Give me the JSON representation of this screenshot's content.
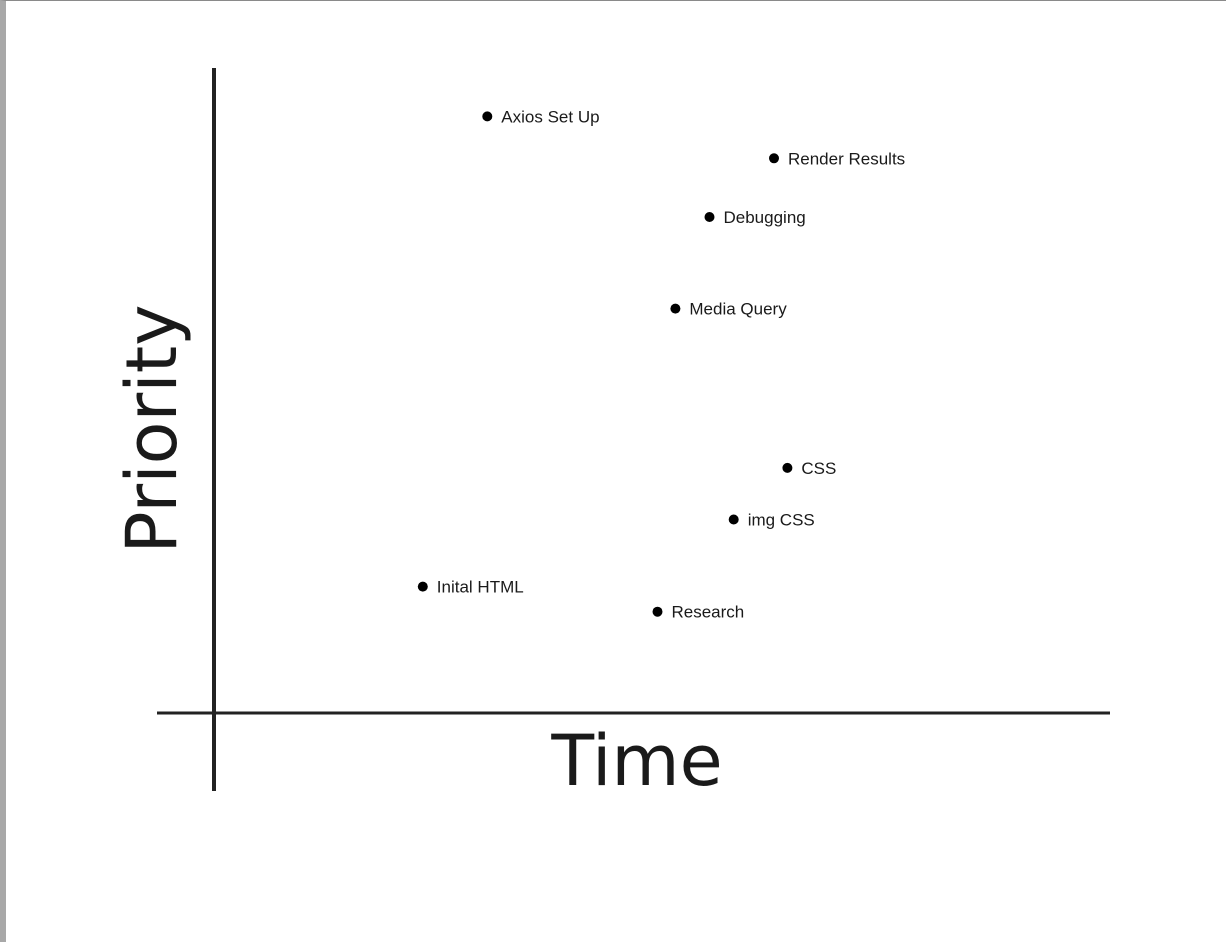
{
  "chart_data": {
    "type": "scatter",
    "title": "",
    "xlabel": "Time",
    "ylabel": "Priority",
    "xlim": [
      0,
      100
    ],
    "ylim": [
      0,
      100
    ],
    "grid": false,
    "legend": "none",
    "colors": {
      "axis": "#222222",
      "point": "#000000",
      "text": "#1a1a1a"
    },
    "points": [
      {
        "label": "Axios Set Up",
        "x": 30.5,
        "y": 92.5
      },
      {
        "label": "Render Results",
        "x": 62.5,
        "y": 86.0
      },
      {
        "label": "Debugging",
        "x": 55.3,
        "y": 76.9
      },
      {
        "label": "Media Query",
        "x": 51.5,
        "y": 62.7
      },
      {
        "label": "CSS",
        "x": 64.0,
        "y": 38.0
      },
      {
        "label": "img CSS",
        "x": 58.0,
        "y": 30.0
      },
      {
        "label": "Inital HTML",
        "x": 23.3,
        "y": 19.6
      },
      {
        "label": "Research",
        "x": 49.5,
        "y": 15.7
      }
    ]
  }
}
